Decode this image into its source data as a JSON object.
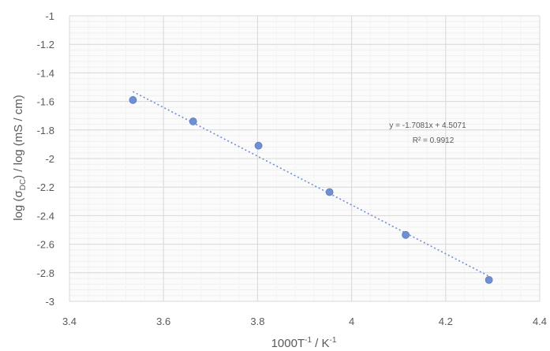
{
  "chart_data": {
    "type": "scatter",
    "xlabel_parts": {
      "base": "1000T",
      "sup1": "-1",
      "mid": " / K",
      "sup2": "-1"
    },
    "ylabel_parts": {
      "pre": "log (σ",
      "sub": "DC",
      "post": ") / log (mS / cm)"
    },
    "xlim": [
      3.4,
      4.4
    ],
    "ylim": [
      -3,
      -1
    ],
    "x_ticks": [
      "3.4",
      "3.6",
      "3.8",
      "4",
      "4.2",
      "4.4"
    ],
    "y_ticks": [
      "-1",
      "-1.2",
      "-1.4",
      "-1.6",
      "-1.8",
      "-2",
      "-2.2",
      "-2.4",
      "-2.6",
      "-2.8",
      "-3"
    ],
    "x_tick_values": [
      3.4,
      3.6,
      3.8,
      4.0,
      4.2,
      4.4
    ],
    "y_tick_values": [
      -1,
      -1.2,
      -1.4,
      -1.6,
      -1.8,
      -2,
      -2.2,
      -2.4,
      -2.6,
      -2.8,
      -3
    ],
    "points": [
      {
        "x": 3.535,
        "y": -1.59
      },
      {
        "x": 3.663,
        "y": -1.74
      },
      {
        "x": 3.802,
        "y": -1.91
      },
      {
        "x": 3.953,
        "y": -2.235
      },
      {
        "x": 4.115,
        "y": -2.535
      },
      {
        "x": 4.292,
        "y": -2.85
      }
    ],
    "trendline": {
      "slope": -1.7081,
      "intercept": 4.5071,
      "x_range": [
        3.535,
        4.292
      ],
      "style": "dotted"
    },
    "equation_label": "y = -1.7081x + 4.5071",
    "r2_label": "R² = 0.9912",
    "grid": true,
    "colors": {
      "marker": "#6f8fd0",
      "trendline": "#6f8fd0",
      "grid": "#d9d9d9",
      "text": "#595959"
    }
  }
}
